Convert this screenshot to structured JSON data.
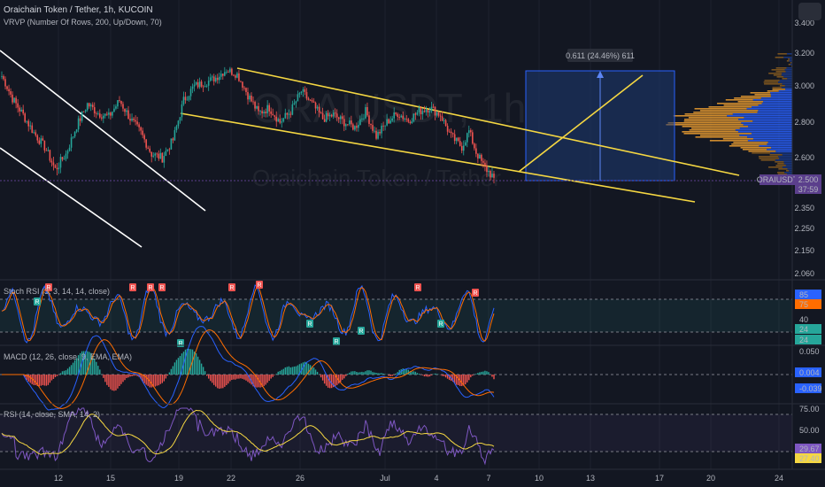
{
  "header": {
    "title": "Oraichain Token / Tether, 1h, KUCOIN",
    "indicator": "VRVP (Number Of Rows, 200, Up/Down, 70)"
  },
  "watermark": {
    "symbol": "ORAIUSDT, 1h",
    "name": "Oraichain Token / Tether"
  },
  "colors": {
    "background": "#131722",
    "candle_up": "#26a69a",
    "candle_down": "#ef5350",
    "channel": "#f5d742",
    "white_channel": "#ffffff",
    "price_tag": "#5b3f8c",
    "measure_box": "#1e3a73",
    "stoch_k": "#2962ff",
    "stoch_d": "#ff6d00",
    "rsi_line": "#7e57c2",
    "rsi_ma": "#f5d742"
  },
  "price_tag": {
    "symbol": "ORAIUSDT",
    "price": "2.500",
    "countdown": "37:59"
  },
  "measure_label": "0.611 (24.46%) 611",
  "chart_data": [
    {
      "type": "candlestick",
      "name": "price",
      "ylim": [
        2.04,
        3.45
      ],
      "y_ticks": [
        "3.400",
        "3.200",
        "3.000",
        "2.800",
        "2.600",
        "2.350",
        "2.250",
        "2.150",
        "2.060"
      ],
      "x_ticks": [
        "12",
        "15",
        "19",
        "22",
        "26",
        "Jul",
        "4",
        "7",
        "10",
        "13",
        "17",
        "20",
        "24"
      ],
      "ohlc_keypoints": [
        {
          "i": 0,
          "c": 3.06
        },
        {
          "i": 6,
          "c": 2.93
        },
        {
          "i": 12,
          "c": 2.84
        },
        {
          "i": 18,
          "c": 2.74
        },
        {
          "i": 24,
          "c": 2.66
        },
        {
          "i": 30,
          "c": 2.54
        },
        {
          "i": 36,
          "c": 2.62
        },
        {
          "i": 42,
          "c": 2.78
        },
        {
          "i": 48,
          "c": 2.9
        },
        {
          "i": 54,
          "c": 2.85
        },
        {
          "i": 60,
          "c": 2.83
        },
        {
          "i": 66,
          "c": 2.92
        },
        {
          "i": 72,
          "c": 2.82
        },
        {
          "i": 78,
          "c": 2.74
        },
        {
          "i": 84,
          "c": 2.62
        },
        {
          "i": 90,
          "c": 2.6
        },
        {
          "i": 96,
          "c": 2.7
        },
        {
          "i": 102,
          "c": 2.92
        },
        {
          "i": 108,
          "c": 3.0
        },
        {
          "i": 114,
          "c": 3.02
        },
        {
          "i": 120,
          "c": 3.05
        },
        {
          "i": 126,
          "c": 3.1
        },
        {
          "i": 132,
          "c": 3.07
        },
        {
          "i": 138,
          "c": 2.95
        },
        {
          "i": 144,
          "c": 2.85
        },
        {
          "i": 150,
          "c": 2.88
        },
        {
          "i": 156,
          "c": 2.8
        },
        {
          "i": 162,
          "c": 2.86
        },
        {
          "i": 168,
          "c": 2.97
        },
        {
          "i": 174,
          "c": 2.9
        },
        {
          "i": 180,
          "c": 2.82
        },
        {
          "i": 186,
          "c": 2.84
        },
        {
          "i": 192,
          "c": 2.8
        },
        {
          "i": 198,
          "c": 2.77
        },
        {
          "i": 204,
          "c": 2.86
        },
        {
          "i": 210,
          "c": 2.72
        },
        {
          "i": 216,
          "c": 2.8
        },
        {
          "i": 222,
          "c": 2.85
        },
        {
          "i": 228,
          "c": 2.81
        },
        {
          "i": 234,
          "c": 2.86
        },
        {
          "i": 240,
          "c": 2.88
        },
        {
          "i": 246,
          "c": 2.84
        },
        {
          "i": 252,
          "c": 2.72
        },
        {
          "i": 258,
          "c": 2.66
        },
        {
          "i": 262,
          "c": 2.75
        },
        {
          "i": 266,
          "c": 2.63
        },
        {
          "i": 270,
          "c": 2.56
        },
        {
          "i": 276,
          "c": 2.5
        }
      ],
      "last_price": 2.5
    },
    {
      "type": "line",
      "name": "Stoch RSI",
      "label": "Stoch RSI (3, 3, 14, 14, close)",
      "ylim": [
        0,
        100
      ],
      "levels": [
        80,
        20
      ],
      "y_ticks": [
        "85",
        "75",
        "40",
        "24",
        "24"
      ],
      "series": [
        {
          "name": "K",
          "value_label": "85"
        },
        {
          "name": "D",
          "value_label": "75"
        }
      ]
    },
    {
      "type": "line",
      "name": "MACD",
      "label": "MACD (12, 26, close, 9, EMA, EMA)",
      "ylim": [
        -0.07,
        0.07
      ],
      "y_ticks": [
        "0.050",
        "0.004",
        "-0.039"
      ]
    },
    {
      "type": "line",
      "name": "RSI",
      "label": "RSI (14, close, SMA, 14, 2)",
      "ylim": [
        20,
        80
      ],
      "levels": [
        70,
        30
      ],
      "y_ticks": [
        "75.00",
        "50.00",
        "29.67",
        "27.40"
      ]
    }
  ]
}
